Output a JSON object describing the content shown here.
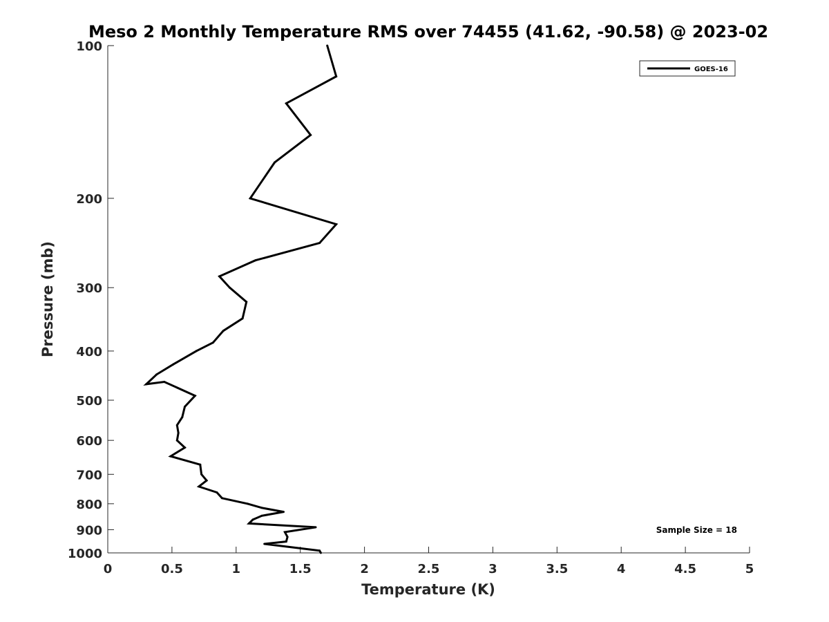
{
  "chart_data": {
    "type": "line",
    "title": "Meso 2 Monthly Temperature RMS over 74455 (41.62, -90.58) @ 2023-02",
    "xlabel": "Temperature (K)",
    "ylabel": "Pressure (mb)",
    "xlim": [
      0,
      5
    ],
    "ylim": [
      100,
      1000
    ],
    "y_scale": "log",
    "y_reversed": true,
    "grid": false,
    "legend_position": "top-right",
    "x_ticks": [
      0,
      0.5,
      1,
      1.5,
      2,
      2.5,
      3,
      3.5,
      4,
      4.5,
      5
    ],
    "x_tick_labels": [
      "0",
      "0.5",
      "1",
      "1.5",
      "2",
      "2.5",
      "3",
      "3.5",
      "4",
      "4.5",
      "5"
    ],
    "y_ticks": [
      100,
      200,
      300,
      400,
      500,
      600,
      700,
      800,
      900,
      1000
    ],
    "y_tick_labels": [
      "100",
      "200",
      "300",
      "400",
      "500",
      "600",
      "700",
      "800",
      "900",
      "1000"
    ],
    "series": [
      {
        "name": "GOES-16",
        "color": "#000000",
        "x": [
          1.71,
          1.78,
          1.39,
          1.58,
          1.3,
          1.11,
          1.78,
          1.65,
          1.15,
          0.87,
          0.95,
          1.08,
          1.05,
          0.9,
          0.82,
          0.69,
          0.51,
          0.38,
          0.3,
          0.44,
          0.68,
          0.6,
          0.58,
          0.54,
          0.55,
          0.54,
          0.6,
          0.49,
          0.72,
          0.73,
          0.77,
          0.71,
          0.85,
          0.89,
          1.09,
          1.2,
          1.37,
          1.2,
          1.13,
          1.1,
          1.62,
          1.38,
          1.4,
          1.39,
          1.22,
          1.65,
          1.66
        ],
        "y": [
          100,
          115,
          130,
          150,
          170,
          200,
          225,
          245,
          265,
          285,
          300,
          320,
          345,
          365,
          385,
          400,
          425,
          445,
          465,
          460,
          490,
          515,
          540,
          560,
          580,
          600,
          620,
          645,
          670,
          700,
          720,
          740,
          760,
          780,
          800,
          815,
          830,
          845,
          860,
          875,
          890,
          910,
          930,
          950,
          960,
          990,
          1000
        ]
      }
    ],
    "annotations": [
      {
        "text": "Sample Size = 18"
      }
    ]
  }
}
